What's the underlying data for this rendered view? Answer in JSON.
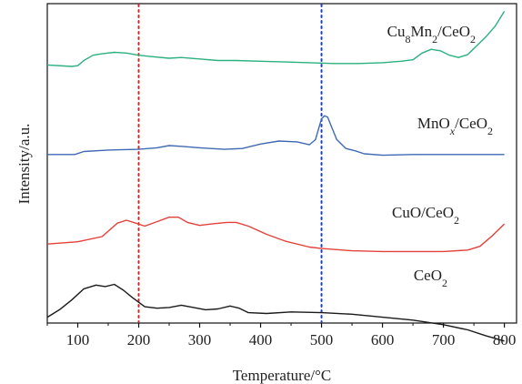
{
  "chart_data": {
    "type": "line",
    "xlabel": "Temperature/°C",
    "ylabel": "Intensity/a.u.",
    "xlim": [
      50,
      820
    ],
    "xticks": [
      "100",
      "200",
      "300",
      "400",
      "500",
      "600",
      "700",
      "800"
    ],
    "grid": false,
    "yticks_shown": false,
    "reference_lines": [
      {
        "x": 200,
        "color": "#d62728",
        "style": "dotted"
      },
      {
        "x": 500,
        "color": "#1f3fbf",
        "style": "dotted"
      }
    ],
    "series": [
      {
        "name": "Cu8Mn2/CeO2",
        "label_parts": [
          [
            "Cu",
            ""
          ],
          [
            "8",
            "sub"
          ],
          [
            "Mn",
            ""
          ],
          [
            "2",
            "sub"
          ],
          [
            "/CeO",
            ""
          ],
          [
            "2",
            "sub"
          ]
        ],
        "color": "#2bb07f",
        "offset": 3.3,
        "points": [
          [
            50,
            0.5
          ],
          [
            90,
            0.48
          ],
          [
            100,
            0.49
          ],
          [
            110,
            0.56
          ],
          [
            125,
            0.63
          ],
          [
            140,
            0.65
          ],
          [
            160,
            0.67
          ],
          [
            180,
            0.66
          ],
          [
            200,
            0.63
          ],
          [
            225,
            0.61
          ],
          [
            250,
            0.59
          ],
          [
            270,
            0.6
          ],
          [
            300,
            0.58
          ],
          [
            330,
            0.56
          ],
          [
            360,
            0.56
          ],
          [
            400,
            0.55
          ],
          [
            440,
            0.54
          ],
          [
            480,
            0.53
          ],
          [
            520,
            0.52
          ],
          [
            560,
            0.52
          ],
          [
            600,
            0.53
          ],
          [
            630,
            0.55
          ],
          [
            650,
            0.57
          ],
          [
            665,
            0.66
          ],
          [
            680,
            0.71
          ],
          [
            695,
            0.69
          ],
          [
            710,
            0.63
          ],
          [
            725,
            0.6
          ],
          [
            740,
            0.64
          ],
          [
            755,
            0.76
          ],
          [
            770,
            0.88
          ],
          [
            785,
            1.02
          ],
          [
            800,
            1.22
          ]
        ]
      },
      {
        "name": "MnOx/CeO2",
        "label_parts": [
          [
            "MnO",
            ""
          ],
          [
            "x",
            "subi"
          ],
          [
            "/CeO",
            ""
          ],
          [
            "2",
            "sub"
          ]
        ],
        "color": "#3f6ab3",
        "offset": 2.2,
        "points": [
          [
            50,
            0.4
          ],
          [
            95,
            0.4
          ],
          [
            110,
            0.44
          ],
          [
            150,
            0.46
          ],
          [
            200,
            0.47
          ],
          [
            230,
            0.49
          ],
          [
            250,
            0.52
          ],
          [
            270,
            0.51
          ],
          [
            300,
            0.49
          ],
          [
            340,
            0.47
          ],
          [
            370,
            0.48
          ],
          [
            400,
            0.54
          ],
          [
            430,
            0.58
          ],
          [
            460,
            0.57
          ],
          [
            480,
            0.53
          ],
          [
            490,
            0.6
          ],
          [
            495,
            0.74
          ],
          [
            500,
            0.88
          ],
          [
            505,
            0.92
          ],
          [
            510,
            0.9
          ],
          [
            515,
            0.8
          ],
          [
            525,
            0.6
          ],
          [
            540,
            0.48
          ],
          [
            555,
            0.45
          ],
          [
            570,
            0.41
          ],
          [
            600,
            0.39
          ],
          [
            650,
            0.4
          ],
          [
            700,
            0.4
          ],
          [
            750,
            0.4
          ],
          [
            800,
            0.4
          ]
        ]
      },
      {
        "name": "CuO/CeO2",
        "label_parts": [
          [
            "CuO/CeO",
            ""
          ],
          [
            "2",
            "sub"
          ]
        ],
        "color": "#e3413a",
        "offset": 1.2,
        "points": [
          [
            50,
            0.2
          ],
          [
            100,
            0.23
          ],
          [
            140,
            0.3
          ],
          [
            165,
            0.48
          ],
          [
            180,
            0.52
          ],
          [
            195,
            0.48
          ],
          [
            210,
            0.44
          ],
          [
            230,
            0.5
          ],
          [
            250,
            0.56
          ],
          [
            265,
            0.56
          ],
          [
            280,
            0.49
          ],
          [
            300,
            0.45
          ],
          [
            320,
            0.47
          ],
          [
            345,
            0.49
          ],
          [
            360,
            0.49
          ],
          [
            380,
            0.44
          ],
          [
            410,
            0.33
          ],
          [
            440,
            0.24
          ],
          [
            480,
            0.16
          ],
          [
            500,
            0.14
          ],
          [
            550,
            0.11
          ],
          [
            600,
            0.1
          ],
          [
            650,
            0.1
          ],
          [
            700,
            0.1
          ],
          [
            740,
            0.12
          ],
          [
            760,
            0.17
          ],
          [
            780,
            0.31
          ],
          [
            800,
            0.47
          ]
        ]
      },
      {
        "name": "CeO2",
        "label_parts": [
          [
            "CeO",
            ""
          ],
          [
            "2",
            "sub"
          ]
        ],
        "color": "#1a1a1a",
        "offset": 0.0,
        "points": [
          [
            50,
            0.42
          ],
          [
            70,
            0.52
          ],
          [
            90,
            0.65
          ],
          [
            110,
            0.8
          ],
          [
            130,
            0.85
          ],
          [
            145,
            0.83
          ],
          [
            160,
            0.86
          ],
          [
            175,
            0.78
          ],
          [
            190,
            0.68
          ],
          [
            210,
            0.56
          ],
          [
            230,
            0.54
          ],
          [
            250,
            0.55
          ],
          [
            270,
            0.58
          ],
          [
            290,
            0.55
          ],
          [
            310,
            0.52
          ],
          [
            330,
            0.53
          ],
          [
            350,
            0.57
          ],
          [
            365,
            0.54
          ],
          [
            380,
            0.48
          ],
          [
            410,
            0.47
          ],
          [
            450,
            0.49
          ],
          [
            500,
            0.48
          ],
          [
            550,
            0.46
          ],
          [
            600,
            0.42
          ],
          [
            650,
            0.38
          ],
          [
            700,
            0.32
          ],
          [
            740,
            0.25
          ],
          [
            770,
            0.17
          ],
          [
            800,
            0.1
          ]
        ]
      }
    ]
  }
}
